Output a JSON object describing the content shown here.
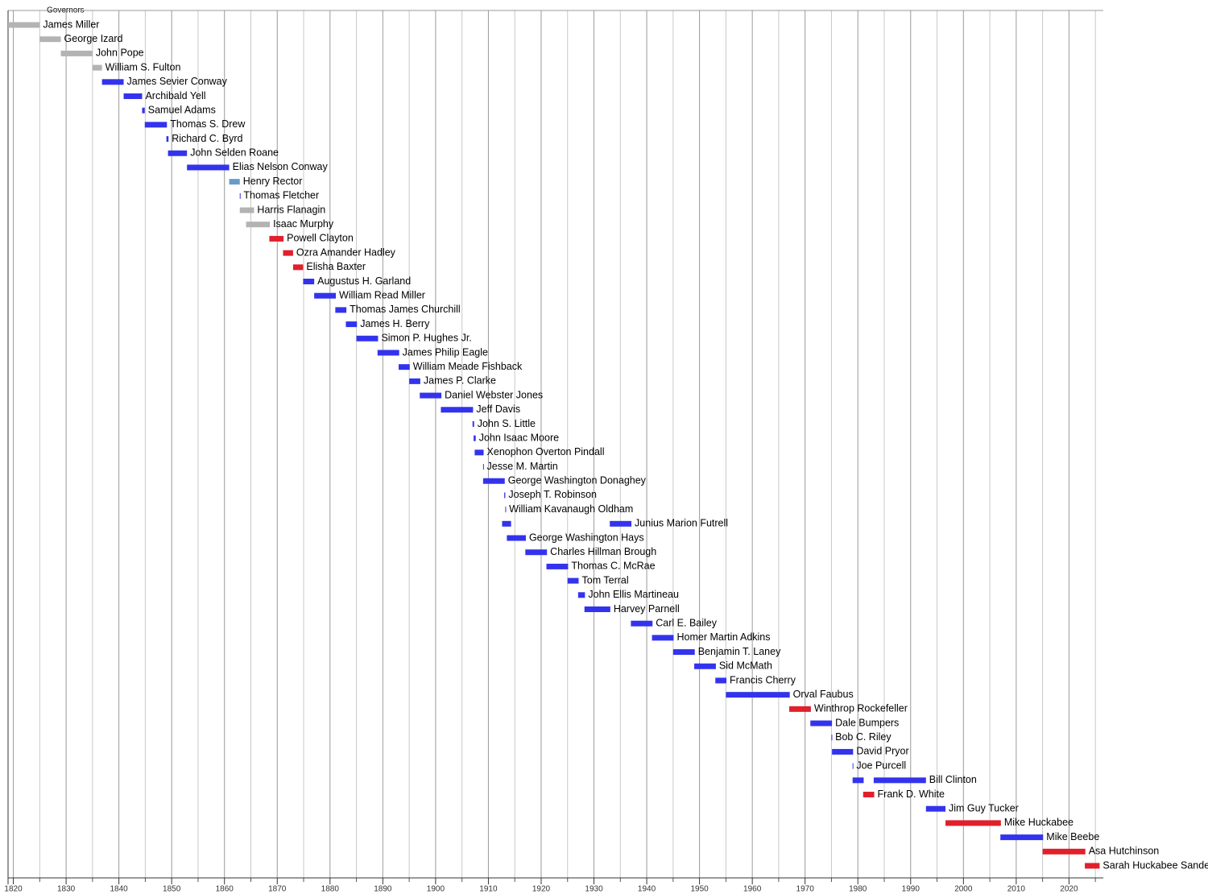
{
  "chart_data": {
    "type": "timeline",
    "title": "Governors",
    "xlim": [
      1819,
      2026.5
    ],
    "xticks": [
      1820,
      1830,
      1840,
      1850,
      1860,
      1870,
      1880,
      1890,
      1900,
      1910,
      1920,
      1930,
      1940,
      1950,
      1960,
      1970,
      1980,
      1990,
      2000,
      2010,
      2020
    ],
    "minor_xticks": [
      1825,
      1835,
      1845,
      1855,
      1865,
      1875,
      1885,
      1895,
      1905,
      1915,
      1925,
      1935,
      1945,
      1955,
      1965,
      1975,
      1985,
      1995,
      2005,
      2015,
      2025
    ],
    "grid": true,
    "rows": [
      {
        "name": "James Miller",
        "color": "#b3b3b3",
        "terms": [
          [
            1819,
            1825
          ]
        ]
      },
      {
        "name": "George Izard",
        "color": "#b3b3b3",
        "terms": [
          [
            1825,
            1829
          ]
        ]
      },
      {
        "name": "John Pope",
        "color": "#b3b3b3",
        "terms": [
          [
            1829,
            1835
          ]
        ]
      },
      {
        "name": "William S. Fulton",
        "color": "#b3b3b3",
        "terms": [
          [
            1835,
            1836.8
          ]
        ]
      },
      {
        "name": "James Sevier Conway",
        "color": "#3333ee",
        "terms": [
          [
            1836.8,
            1840.9
          ]
        ]
      },
      {
        "name": "Archibald Yell",
        "color": "#3333ee",
        "terms": [
          [
            1840.9,
            1844.4
          ]
        ]
      },
      {
        "name": "Samuel Adams",
        "color": "#3333ee",
        "terms": [
          [
            1844.4,
            1844.9
          ]
        ]
      },
      {
        "name": "Thomas S. Drew",
        "color": "#3333ee",
        "terms": [
          [
            1844.9,
            1849.1
          ]
        ]
      },
      {
        "name": "Richard C. Byrd",
        "color": "#3333ee",
        "terms": [
          [
            1849.0,
            1849.4
          ]
        ]
      },
      {
        "name": "John Selden Roane",
        "color": "#3333ee",
        "terms": [
          [
            1849.3,
            1852.9
          ]
        ]
      },
      {
        "name": "Elias Nelson Conway",
        "color": "#3333ee",
        "terms": [
          [
            1852.9,
            1860.9
          ]
        ]
      },
      {
        "name": "Henry Rector",
        "color": "#6b9ac4",
        "terms": [
          [
            1860.9,
            1862.9
          ]
        ]
      },
      {
        "name": "Thomas Fletcher",
        "color": "#3333ee",
        "terms": [
          [
            1862.9,
            1863.0
          ]
        ]
      },
      {
        "name": "Harris Flanagin",
        "color": "#b3b3b3",
        "terms": [
          [
            1862.9,
            1865.6
          ]
        ]
      },
      {
        "name": "Isaac Murphy",
        "color": "#b3b3b3",
        "terms": [
          [
            1864.1,
            1868.6
          ]
        ]
      },
      {
        "name": "Powell Clayton",
        "color": "#e0202a",
        "terms": [
          [
            1868.5,
            1871.2
          ]
        ]
      },
      {
        "name": "Ozra Amander Hadley",
        "color": "#e0202a",
        "terms": [
          [
            1871.1,
            1873.0
          ]
        ]
      },
      {
        "name": "Elisha Baxter",
        "color": "#e0202a",
        "terms": [
          [
            1873.0,
            1874.9
          ]
        ]
      },
      {
        "name": "Augustus H. Garland",
        "color": "#3333ee",
        "terms": [
          [
            1874.9,
            1877.0
          ]
        ]
      },
      {
        "name": "William Read Miller",
        "color": "#3333ee",
        "terms": [
          [
            1877.0,
            1881.1
          ]
        ]
      },
      {
        "name": "Thomas James Churchill",
        "color": "#3333ee",
        "terms": [
          [
            1881.0,
            1883.1
          ]
        ]
      },
      {
        "name": "James H. Berry",
        "color": "#3333ee",
        "terms": [
          [
            1883.0,
            1885.1
          ]
        ]
      },
      {
        "name": "Simon P. Hughes Jr.",
        "color": "#3333ee",
        "terms": [
          [
            1885.0,
            1889.1
          ]
        ]
      },
      {
        "name": "James Philip Eagle",
        "color": "#3333ee",
        "terms": [
          [
            1889.0,
            1893.1
          ]
        ]
      },
      {
        "name": "William Meade Fishback",
        "color": "#3333ee",
        "terms": [
          [
            1893.0,
            1895.1
          ]
        ]
      },
      {
        "name": "James P. Clarke",
        "color": "#3333ee",
        "terms": [
          [
            1895.0,
            1897.1
          ]
        ]
      },
      {
        "name": "Daniel Webster Jones",
        "color": "#3333ee",
        "terms": [
          [
            1897.0,
            1901.1
          ]
        ]
      },
      {
        "name": "Jeff Davis",
        "color": "#3333ee",
        "terms": [
          [
            1901.0,
            1907.1
          ]
        ]
      },
      {
        "name": "John S. Little",
        "color": "#3333ee",
        "terms": [
          [
            1907.0,
            1907.3
          ]
        ]
      },
      {
        "name": "John Isaac Moore",
        "color": "#3333ee",
        "terms": [
          [
            1907.2,
            1907.6
          ]
        ]
      },
      {
        "name": "Xenophon Overton Pindall",
        "color": "#3333ee",
        "terms": [
          [
            1907.4,
            1909.1
          ]
        ]
      },
      {
        "name": "Jesse M. Martin",
        "color": "#3333ee",
        "terms": [
          [
            1909.0,
            1909.1
          ]
        ]
      },
      {
        "name": "George Washington Donaghey",
        "color": "#3333ee",
        "terms": [
          [
            1909.0,
            1913.1
          ]
        ]
      },
      {
        "name": "Joseph T. Robinson",
        "color": "#3333ee",
        "terms": [
          [
            1913.0,
            1913.2
          ]
        ]
      },
      {
        "name": "William Kavanaugh Oldham",
        "color": "#3333ee",
        "terms": [
          [
            1913.2,
            1913.3
          ]
        ]
      },
      {
        "name": "Junius Marion Futrell",
        "color": "#3333ee",
        "terms": [
          [
            1912.6,
            1914.3
          ],
          [
            1933.0,
            1937.1
          ]
        ]
      },
      {
        "name": "George Washington Hays",
        "color": "#3333ee",
        "terms": [
          [
            1913.5,
            1917.1
          ]
        ]
      },
      {
        "name": "Charles Hillman Brough",
        "color": "#3333ee",
        "terms": [
          [
            1917.0,
            1921.1
          ]
        ]
      },
      {
        "name": "Thomas C. McRae",
        "color": "#3333ee",
        "terms": [
          [
            1921.0,
            1925.1
          ]
        ]
      },
      {
        "name": "Tom Terral",
        "color": "#3333ee",
        "terms": [
          [
            1925.0,
            1927.1
          ]
        ]
      },
      {
        "name": "John Ellis Martineau",
        "color": "#3333ee",
        "terms": [
          [
            1927.0,
            1928.3
          ]
        ]
      },
      {
        "name": "Harvey Parnell",
        "color": "#3333ee",
        "terms": [
          [
            1928.2,
            1933.1
          ]
        ]
      },
      {
        "name": "Carl E. Bailey",
        "color": "#3333ee",
        "terms": [
          [
            1937.0,
            1941.1
          ]
        ]
      },
      {
        "name": "Homer Martin Adkins",
        "color": "#3333ee",
        "terms": [
          [
            1941.0,
            1945.1
          ]
        ]
      },
      {
        "name": "Benjamin T. Laney",
        "color": "#3333ee",
        "terms": [
          [
            1945.0,
            1949.1
          ]
        ]
      },
      {
        "name": "Sid McMath",
        "color": "#3333ee",
        "terms": [
          [
            1949.0,
            1953.1
          ]
        ]
      },
      {
        "name": "Francis Cherry",
        "color": "#3333ee",
        "terms": [
          [
            1953.0,
            1955.1
          ]
        ]
      },
      {
        "name": "Orval Faubus",
        "color": "#3333ee",
        "terms": [
          [
            1955.0,
            1967.1
          ]
        ]
      },
      {
        "name": "Winthrop Rockefeller",
        "color": "#e0202a",
        "terms": [
          [
            1967.0,
            1971.1
          ]
        ]
      },
      {
        "name": "Dale Bumpers",
        "color": "#3333ee",
        "terms": [
          [
            1971.0,
            1975.1
          ]
        ]
      },
      {
        "name": "Bob C. Riley",
        "color": "#3333ee",
        "terms": [
          [
            1975.0,
            1975.1
          ]
        ]
      },
      {
        "name": "David Pryor",
        "color": "#3333ee",
        "terms": [
          [
            1975.1,
            1979.1
          ]
        ]
      },
      {
        "name": "Joe Purcell",
        "color": "#3333ee",
        "terms": [
          [
            1979.0,
            1979.1
          ]
        ]
      },
      {
        "name": "Bill Clinton",
        "color": "#3333ee",
        "terms": [
          [
            1979.0,
            1981.1
          ],
          [
            1983.0,
            1992.9
          ]
        ]
      },
      {
        "name": "Frank D. White",
        "color": "#e0202a",
        "terms": [
          [
            1981.0,
            1983.1
          ]
        ]
      },
      {
        "name": "Jim Guy Tucker",
        "color": "#3333ee",
        "terms": [
          [
            1992.9,
            1996.6
          ]
        ]
      },
      {
        "name": "Mike Huckabee",
        "color": "#e0202a",
        "terms": [
          [
            1996.6,
            2007.1
          ]
        ]
      },
      {
        "name": "Mike Beebe",
        "color": "#3333ee",
        "terms": [
          [
            2007.0,
            2015.1
          ]
        ]
      },
      {
        "name": "Asa Hutchinson",
        "color": "#e0202a",
        "terms": [
          [
            2015.0,
            2023.1
          ]
        ]
      },
      {
        "name": "Sarah Huckabee Sanders",
        "color": "#e0202a",
        "terms": [
          [
            2023.0,
            2025.8
          ]
        ]
      }
    ]
  }
}
